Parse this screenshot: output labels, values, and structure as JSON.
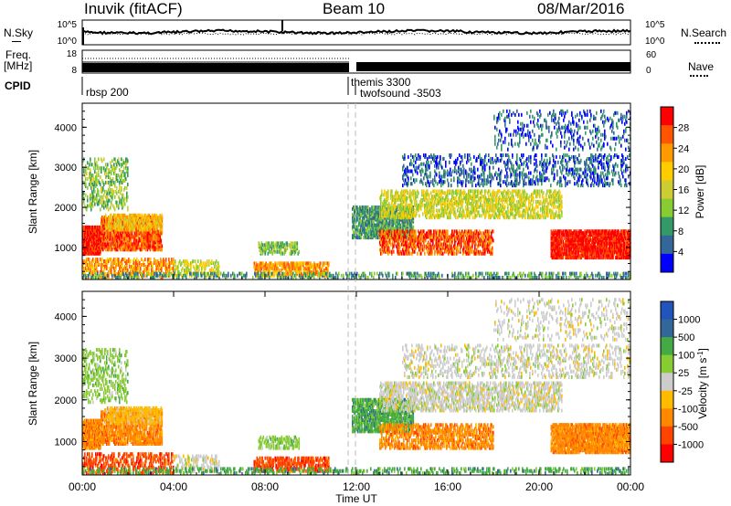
{
  "header": {
    "station": "Inuvik (fitACF)",
    "beam": "Beam 10",
    "date": "08/Mar/2016"
  },
  "panel_labels": {
    "nsky": "N.Sky",
    "nsearch": "N.Search",
    "freq_line1": "Freq.",
    "freq_line2": "[MHz]",
    "nave": "Nave",
    "cpid": "CPID"
  },
  "cpid_labels": [
    "rbsp 200",
    "themis 3300",
    "twofsound -3503"
  ],
  "chart_data": [
    {
      "name": "noise",
      "type": "line",
      "left_ticks": [
        "10^5",
        "10^0"
      ],
      "right_ticks": [
        "10^5",
        "10^0"
      ]
    },
    {
      "name": "frequency",
      "type": "line",
      "left_ticks": [
        "18",
        "8"
      ],
      "right_ticks": [
        "60",
        "0"
      ]
    },
    {
      "name": "power",
      "type": "heatmap",
      "ylabel": "Slant Range [km]",
      "yticks": [
        1000,
        2000,
        3000,
        4000
      ],
      "ylim": [
        200,
        4600
      ],
      "colorbar_label": "Power [dB]",
      "colorbar_ticks": [
        "28",
        "24",
        "20",
        "16",
        "12",
        "8",
        "4"
      ],
      "colors": [
        "#ff0000",
        "#ff5500",
        "#ff9900",
        "#ffcc00",
        "#cccc33",
        "#88cc33",
        "#339966",
        "#336699",
        "#0000ff"
      ]
    },
    {
      "name": "velocity",
      "type": "heatmap",
      "ylabel": "Slant Range [km]",
      "yticks": [
        1000,
        2000,
        3000,
        4000
      ],
      "ylim": [
        200,
        4600
      ],
      "colorbar_label": "Velocity [m s^-1]",
      "colorbar_ticks": [
        "1000",
        "500",
        "100",
        "25",
        "-25",
        "-100",
        "-500",
        "-1000"
      ],
      "colors": [
        "#2255bb",
        "#336699",
        "#44aa44",
        "#88cc33",
        "#cccccc",
        "#ffbb00",
        "#ff8800",
        "#ff4400",
        "#ff0000"
      ]
    }
  ],
  "time_axis": {
    "ticks": [
      "00:00",
      "04:00",
      "08:00",
      "12:00",
      "16:00",
      "20:00",
      "00:00"
    ],
    "label": "Time UT"
  }
}
